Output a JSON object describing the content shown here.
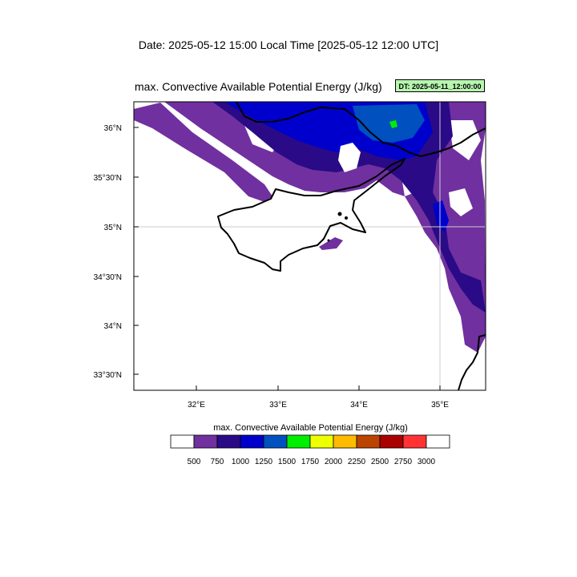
{
  "header": {
    "date_line": "Date: 2025-05-12  15:00 Local Time [2025-05-12  12:00 UTC]",
    "map_title": "max. Convective Available Potential Energy   (J/kg)",
    "dt_badge": "DT: 2025-05-11_12:00:00"
  },
  "axes": {
    "lat_labels": [
      "36°N",
      "35°30'N",
      "35°N",
      "34°30'N",
      "34°N",
      "33°30'N"
    ],
    "lon_labels": [
      "32°E",
      "33°E",
      "34°E",
      "35°E"
    ]
  },
  "colorbar": {
    "title": "max. Convective Available Potential Energy  (J/kg)",
    "levels": [
      "500",
      "750",
      "1000",
      "1250",
      "1500",
      "1750",
      "2000",
      "2250",
      "2500",
      "2750",
      "3000"
    ],
    "colors": [
      "#ffffff",
      "#7030a0",
      "#2a0a86",
      "#0000cc",
      "#0050c0",
      "#00ee00",
      "#eeff00",
      "#ffbb00",
      "#bb4400",
      "#aa0000",
      "#ff3333",
      "#ffffff"
    ]
  },
  "legend_colors": {
    "cape_500_750": "#7030a0",
    "cape_750_1000": "#2a0a86",
    "cape_1000_1250": "#0000cc",
    "cape_1250_1500": "#0050c0",
    "cape_1500_1750": "#00ee00"
  }
}
